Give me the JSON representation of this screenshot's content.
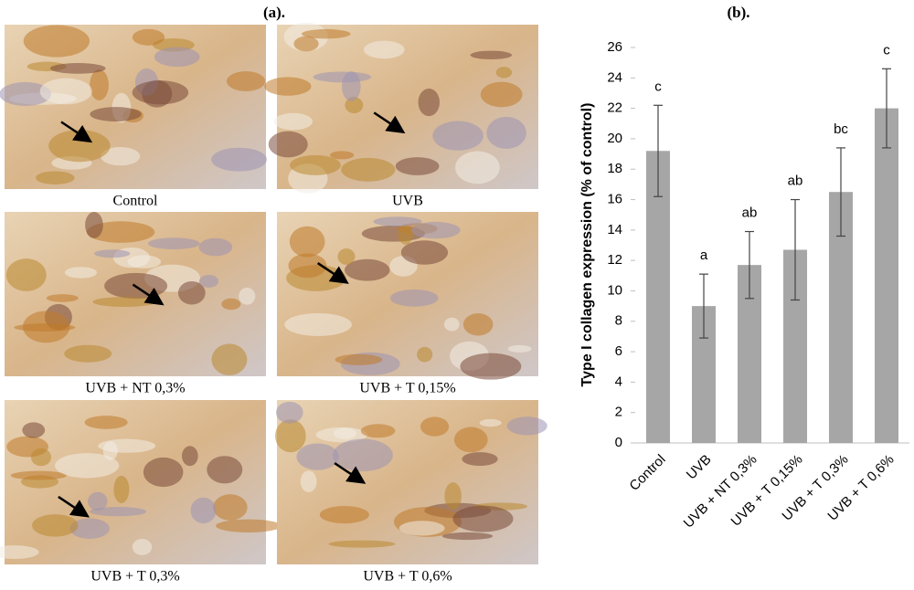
{
  "panel_a": {
    "title": "(a).",
    "captions": [
      "Control",
      "UVB",
      "UVB + NT 0,3%",
      "UVB + T 0,15%",
      "UVB + T 0,3%",
      "UVB + T 0,6%"
    ]
  },
  "chart_data": {
    "type": "bar",
    "title": "(b).",
    "y_label": "Type I collagen expression (% of control)",
    "categories": [
      "Control",
      "UVB",
      "UVB + NT 0,3%",
      "UVB + T 0,15%",
      "UVB + T 0,3%",
      "UVB + T 0,6%"
    ],
    "values": [
      19.2,
      9.0,
      11.7,
      12.7,
      16.5,
      22.0
    ],
    "errors": [
      3.0,
      2.1,
      2.2,
      3.3,
      2.9,
      2.6
    ],
    "letters": [
      "c",
      "a",
      "ab",
      "ab",
      "bc",
      "c"
    ],
    "color": "#a6a6a6",
    "ylim": [
      0,
      26
    ],
    "yticks": [
      0,
      2,
      4,
      6,
      8,
      10,
      12,
      14,
      16,
      18,
      20,
      22,
      24,
      26
    ],
    "grid": false
  }
}
